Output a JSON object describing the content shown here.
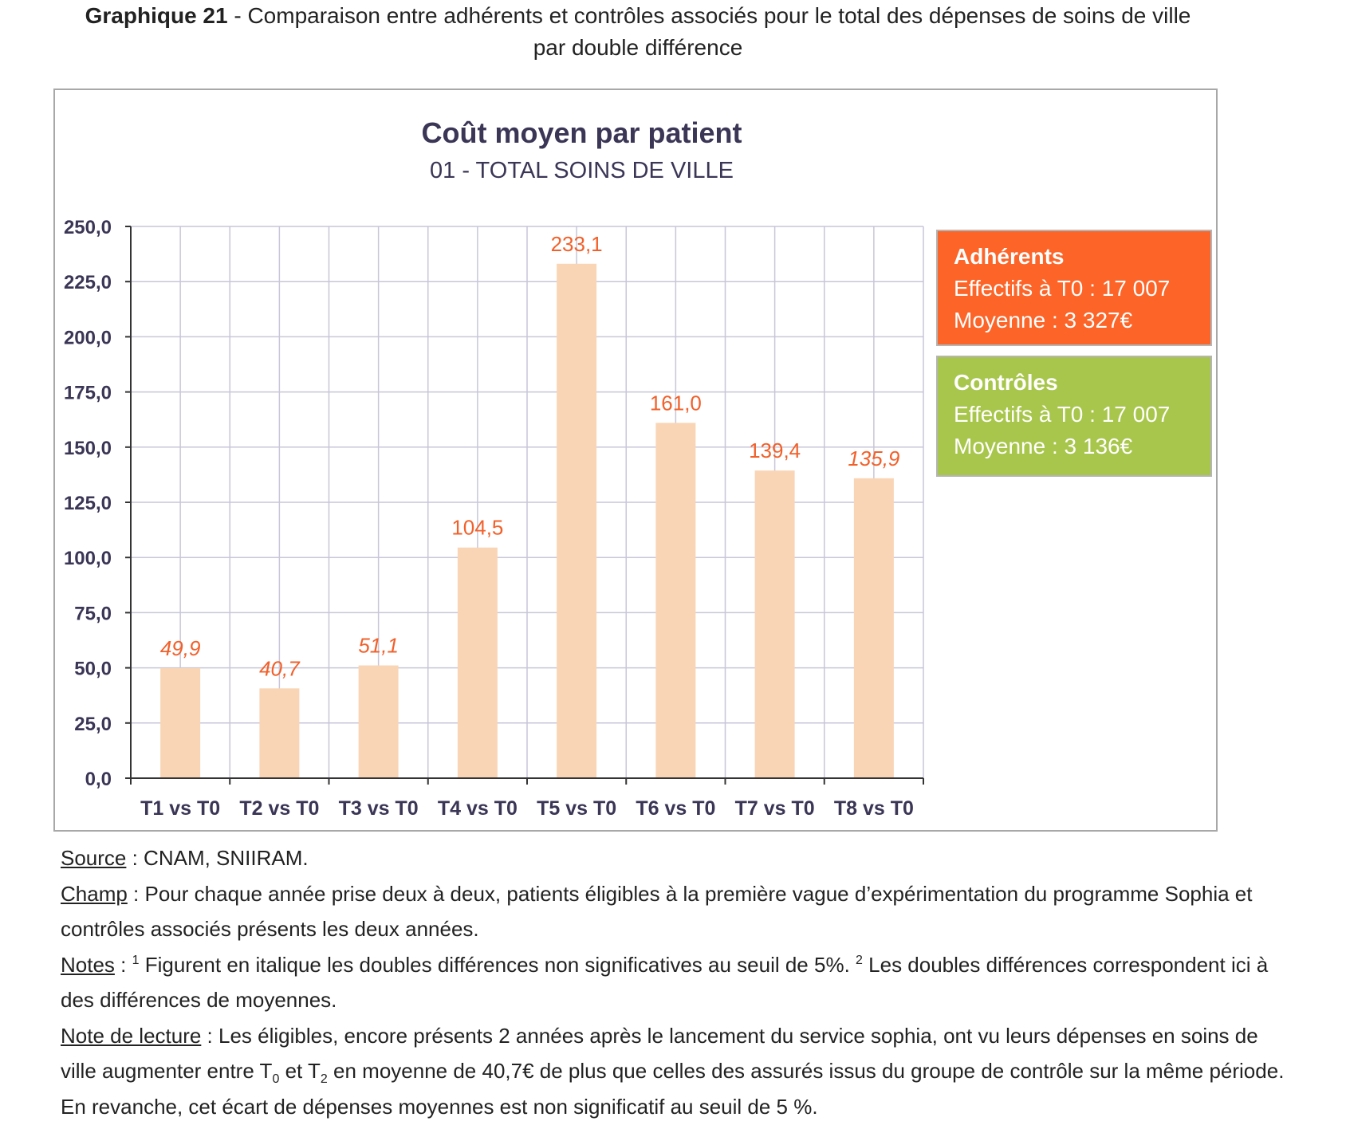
{
  "page": {
    "title_bold": "Graphique 21",
    "title_rest": " - Comparaison entre adhérents et contrôles associés pour le total des dépenses de soins de ville",
    "title_line2": "par double différence"
  },
  "colors": {
    "bar": "#f9d5b6",
    "data_label": "#f2602a",
    "axis_text": "#3b3556",
    "grid": "#c8c6d8",
    "adherents_box": "#fc6428",
    "controles_box": "#a8c64b"
  },
  "legend": {
    "adherents": {
      "title": "Adhérents",
      "line1": "Effectifs à T0 : 17 007",
      "line2": "Moyenne : 3 327€"
    },
    "controles": {
      "title": "Contrôles",
      "line1": "Effectifs à T0 : 17 007",
      "line2": "Moyenne : 3 136€"
    }
  },
  "chart_data": {
    "type": "bar",
    "title": "Coût moyen par patient",
    "subtitle": "01 - TOTAL SOINS DE VILLE",
    "categories": [
      "T1 vs T0",
      "T2 vs T0",
      "T3 vs T0",
      "T4 vs T0",
      "T5 vs T0",
      "T6 vs T0",
      "T7 vs T0",
      "T8 vs T0"
    ],
    "values": [
      49.9,
      40.7,
      51.1,
      104.5,
      233.1,
      161.0,
      139.4,
      135.9
    ],
    "value_labels": [
      "49,9",
      "40,7",
      "51,1",
      "104,5",
      "233,1",
      "161,0",
      "139,4",
      "135,9"
    ],
    "label_italic": [
      true,
      true,
      true,
      false,
      false,
      false,
      false,
      true
    ],
    "yticks": [
      "0,0",
      "25,0",
      "50,0",
      "75,0",
      "100,0",
      "125,0",
      "150,0",
      "175,0",
      "200,0",
      "225,0",
      "250,0"
    ],
    "ylim": [
      0,
      250
    ],
    "ystep": 25,
    "grid": true,
    "xlabel": "",
    "ylabel": ""
  },
  "notes": {
    "source_label": "Source",
    "source_text": " : CNAM, SNIIRAM.",
    "champ_label": "Champ",
    "champ_text": " : Pour chaque année prise deux à deux, patients éligibles à la première vague d’expérimentation du programme Sophia et contrôles associés présents les deux années.",
    "notes_label": "Notes",
    "notes_sep": " : ",
    "sup1": "1",
    "notes_text1": " Figurent en italique les doubles différences non significatives au seuil de 5%. ",
    "sup2": "2",
    "notes_text2": " Les doubles différences correspondent ici à des différences de moyennes.",
    "lecture_label": "Note de lecture",
    "lecture_a": " : Les éligibles, encore présents 2 années après le lancement du service sophia, ont vu leurs dépenses en soins de ville augmenter entre T",
    "sub0": "0",
    "lecture_b": " et T",
    "sub2": "2",
    "lecture_c": " en moyenne de 40,7€ de plus que celles des assurés issus du groupe de contrôle sur la même période. En revanche, cet écart de dépenses moyennes est non significatif au seuil de 5 %."
  }
}
